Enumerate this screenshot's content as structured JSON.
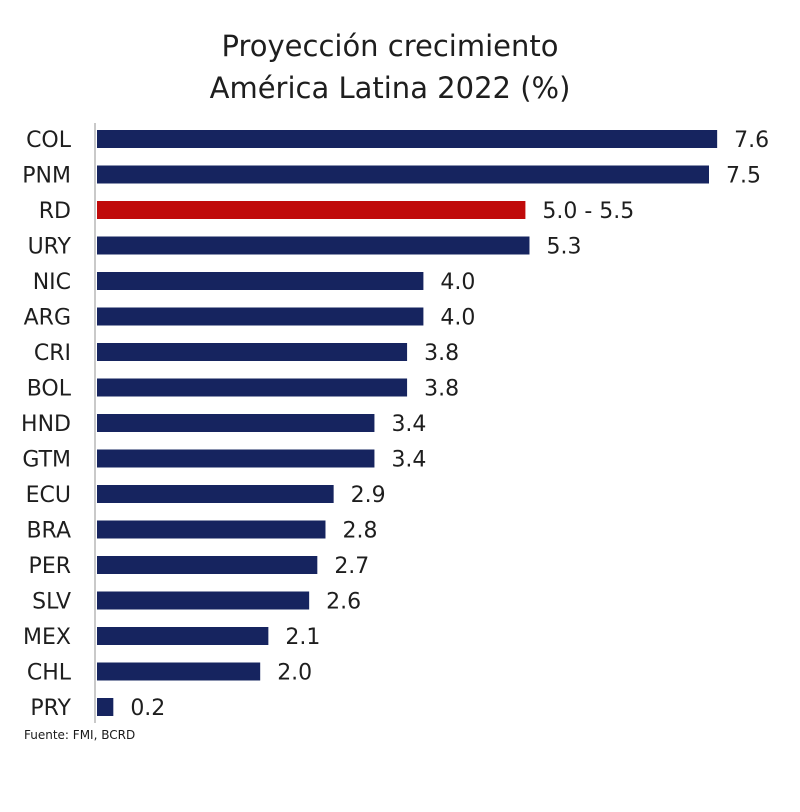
{
  "title_line1": "Proyección crecimiento",
  "title_line2": "América Latina 2022 (%)",
  "source": "Fuente: FMI, BCRD",
  "colors": {
    "bar": "#16245f",
    "highlight": "#c00a0a",
    "axis": "#c9c9c9",
    "text": "#1e1e1e"
  },
  "chart_data": {
    "type": "bar",
    "orientation": "horizontal",
    "title": "Proyección crecimiento América Latina 2022 (%)",
    "categories": [
      "COL",
      "PNM",
      "RD",
      "URY",
      "NIC",
      "ARG",
      "CRI",
      "BOL",
      "HND",
      "GTM",
      "ECU",
      "BRA",
      "PER",
      "SLV",
      "MEX",
      "CHL",
      "PRY"
    ],
    "values": [
      7.6,
      7.5,
      5.25,
      5.3,
      4.0,
      4.0,
      3.8,
      3.8,
      3.4,
      3.4,
      2.9,
      2.8,
      2.7,
      2.6,
      2.1,
      2.0,
      0.2
    ],
    "data_labels": [
      "7.6",
      "7.5",
      "5.0 - 5.5",
      "5.3",
      "4.0",
      "4.0",
      "3.8",
      "3.8",
      "3.4",
      "3.4",
      "2.9",
      "2.8",
      "2.7",
      "2.6",
      "2.1",
      "2.0",
      "0.2"
    ],
    "highlight_category": "RD",
    "xlim": [
      0,
      7.6
    ],
    "grid": false,
    "legend": "none"
  }
}
